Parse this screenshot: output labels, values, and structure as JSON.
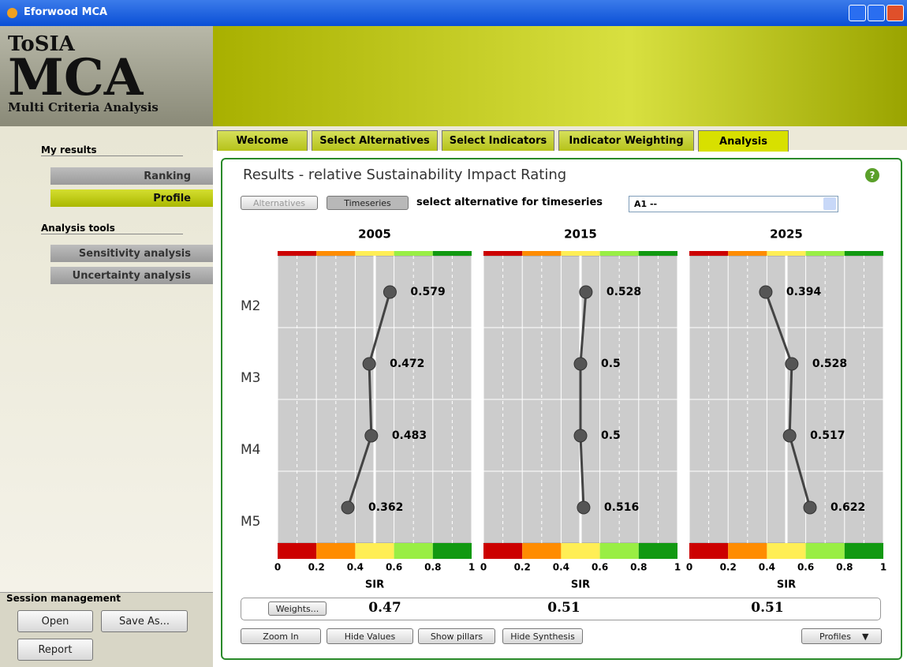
{
  "window": {
    "title": "Eforwood MCA"
  },
  "logo": {
    "line1": "ToSIA",
    "line2": "MCA",
    "line3": "Multi Criteria Analysis"
  },
  "sidebar": {
    "my_results": "My results",
    "ranking": "Ranking",
    "profile": "Profile",
    "analysis_tools": "Analysis tools",
    "sensitivity": "Sensitivity analysis",
    "uncertainty": "Uncertainty analysis",
    "session": "Session management",
    "open": "Open",
    "save_as": "Save As...",
    "report": "Report"
  },
  "tabs": [
    "Welcome",
    "Select Alternatives",
    "Select Indicators",
    "Indicator Weighting",
    "Analysis"
  ],
  "panel": {
    "title": "Results - relative Sustainability Impact Rating",
    "alternatives": "Alternatives",
    "timeseries": "Timeseries",
    "select_label": "select alternative for timeseries",
    "dropdown": "A1 --",
    "weights": "Weights...",
    "synthesis": [
      0.47,
      0.51,
      0.51
    ],
    "buttons": [
      "Zoom In",
      "Hide Values",
      "Show pillars",
      "Hide Synthesis"
    ],
    "profiles": "Profiles"
  },
  "chart_data": [
    {
      "type": "line",
      "title": "2005",
      "categories": [
        "M2",
        "M3",
        "M4",
        "M5"
      ],
      "values": [
        0.579,
        0.472,
        0.483,
        0.362
      ],
      "xlim": [
        0,
        1
      ],
      "xticks": [
        0,
        0.2,
        0.4,
        0.6,
        0.8,
        1
      ],
      "xlabel": "SIR",
      "reference": 0.5,
      "color": "#444444"
    },
    {
      "type": "line",
      "title": "2015",
      "categories": [
        "M2",
        "M3",
        "M4",
        "M5"
      ],
      "values": [
        0.528,
        0.5,
        0.5,
        0.516
      ],
      "xlim": [
        0,
        1
      ],
      "xticks": [
        0,
        0.2,
        0.4,
        0.6,
        0.8,
        1
      ],
      "xlabel": "SIR",
      "reference": 0.5,
      "color": "#444444"
    },
    {
      "type": "line",
      "title": "2025",
      "categories": [
        "M2",
        "M3",
        "M4",
        "M5"
      ],
      "values": [
        0.394,
        0.528,
        0.517,
        0.622
      ],
      "xlim": [
        0,
        1
      ],
      "xticks": [
        0,
        0.2,
        0.4,
        0.6,
        0.8,
        1
      ],
      "xlabel": "SIR",
      "reference": 0.5,
      "color": "#444444"
    }
  ]
}
